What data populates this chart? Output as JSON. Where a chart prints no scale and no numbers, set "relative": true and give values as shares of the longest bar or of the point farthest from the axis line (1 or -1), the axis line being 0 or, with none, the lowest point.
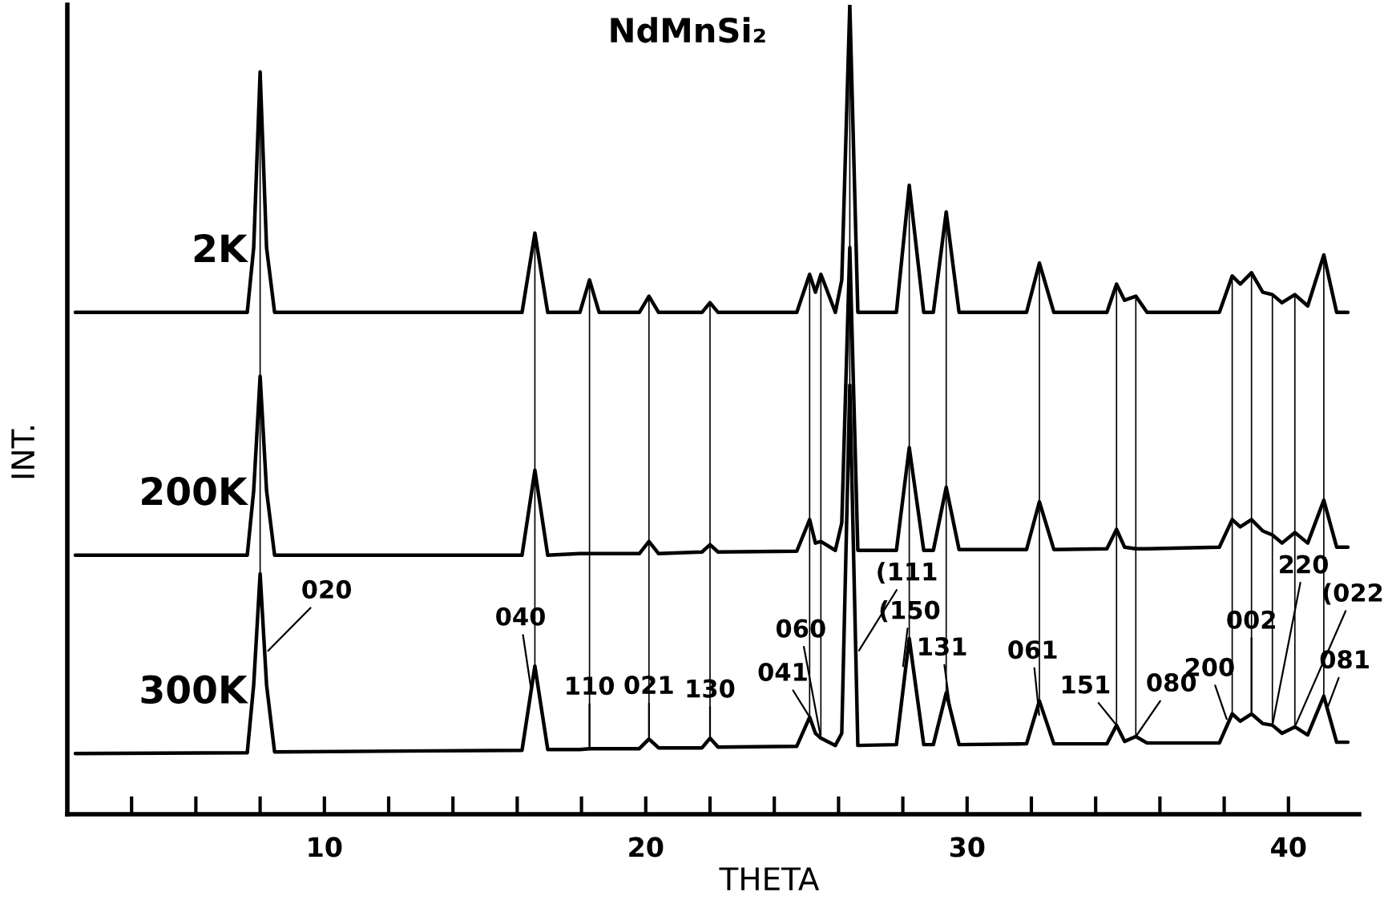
{
  "chart_data": {
    "type": "line",
    "title": "NdMnSi₂",
    "xlabel": "THETA",
    "ylabel": "INT.",
    "relative": true,
    "xlim": [
      2,
      42.2
    ],
    "xticks": [
      {
        "value": 4,
        "label": null
      },
      {
        "value": 6,
        "label": null
      },
      {
        "value": 8,
        "label": null
      },
      10,
      {
        "value": 12,
        "label": null
      },
      {
        "value": 14,
        "label": null
      },
      {
        "value": 16,
        "label": null
      },
      {
        "value": 18,
        "label": null
      },
      20,
      {
        "value": 22,
        "label": null
      },
      {
        "value": 24,
        "label": null
      },
      {
        "value": 26,
        "label": null
      },
      {
        "value": 28,
        "label": null
      },
      30,
      {
        "value": 32,
        "label": null
      },
      {
        "value": 34,
        "label": null
      },
      {
        "value": 36,
        "label": null
      },
      {
        "value": 38,
        "label": null
      },
      40
    ],
    "tick_labels": "x",
    "grid": false,
    "marker": "none",
    "line_style": "solid",
    "x": [
      2.25,
      7.6,
      7.8,
      8.0,
      8.2,
      8.45,
      16.15,
      16.55,
      16.95,
      17.95,
      18.25,
      18.55,
      19.8,
      20.1,
      20.4,
      21.75,
      22.0,
      22.25,
      24.7,
      25.1,
      25.28,
      25.45,
      25.9,
      26.1,
      26.35,
      26.6,
      27.8,
      28.2,
      28.65,
      28.95,
      29.35,
      29.75,
      31.85,
      32.25,
      32.7,
      34.35,
      34.65,
      34.9,
      35.25,
      35.6,
      37.85,
      38.25,
      38.5,
      38.85,
      39.2,
      39.5,
      39.8,
      40.2,
      40.6,
      41.1,
      41.5,
      41.85
    ],
    "series": [
      {
        "name": "2K",
        "color": "#000000",
        "values": [
          0.62,
          0.62,
          0.7,
          0.917,
          0.7,
          0.62,
          0.62,
          0.718,
          0.62,
          0.62,
          0.66,
          0.62,
          0.62,
          0.64,
          0.62,
          0.62,
          0.632,
          0.62,
          0.62,
          0.667,
          0.645,
          0.667,
          0.62,
          0.66,
          1.0,
          0.62,
          0.62,
          0.777,
          0.62,
          0.62,
          0.744,
          0.62,
          0.62,
          0.681,
          0.62,
          0.62,
          0.655,
          0.635,
          0.64,
          0.62,
          0.62,
          0.665,
          0.655,
          0.669,
          0.645,
          0.642,
          0.632,
          0.642,
          0.628,
          0.691,
          0.62,
          0.62
        ]
      },
      {
        "name": "200K",
        "color": "#000000",
        "values": [
          0.32,
          0.32,
          0.4,
          0.541,
          0.4,
          0.32,
          0.32,
          0.425,
          0.32,
          0.322,
          0.322,
          0.322,
          0.322,
          0.337,
          0.322,
          0.324,
          0.333,
          0.324,
          0.325,
          0.364,
          0.335,
          0.337,
          0.326,
          0.36,
          0.7,
          0.326,
          0.326,
          0.453,
          0.326,
          0.326,
          0.404,
          0.327,
          0.327,
          0.386,
          0.327,
          0.328,
          0.352,
          0.33,
          0.328,
          0.328,
          0.33,
          0.364,
          0.355,
          0.364,
          0.35,
          0.345,
          0.335,
          0.348,
          0.335,
          0.388,
          0.33,
          0.33
        ]
      },
      {
        "name": "300K",
        "color": "#000000",
        "values": [
          0.075,
          0.076,
          0.16,
          0.297,
          0.16,
          0.077,
          0.079,
          0.183,
          0.08,
          0.08,
          0.081,
          0.081,
          0.081,
          0.093,
          0.082,
          0.082,
          0.094,
          0.083,
          0.084,
          0.12,
          0.1,
          0.094,
          0.085,
          0.1,
          0.53,
          0.085,
          0.086,
          0.217,
          0.086,
          0.086,
          0.15,
          0.086,
          0.087,
          0.14,
          0.087,
          0.087,
          0.11,
          0.09,
          0.096,
          0.088,
          0.088,
          0.124,
          0.115,
          0.124,
          0.112,
          0.11,
          0.1,
          0.108,
          0.098,
          0.146,
          0.089,
          0.089
        ]
      }
    ],
    "ref_lines": [
      {
        "axis": "x",
        "value": 8.0
      },
      {
        "axis": "x",
        "value": 16.55
      },
      {
        "axis": "x",
        "value": 18.25
      },
      {
        "axis": "x",
        "value": 20.1
      },
      {
        "axis": "x",
        "value": 22.0
      },
      {
        "axis": "x",
        "value": 25.1
      },
      {
        "axis": "x",
        "value": 25.45
      },
      {
        "axis": "x",
        "value": 26.35
      },
      {
        "axis": "x",
        "value": 28.2
      },
      {
        "axis": "x",
        "value": 29.35
      },
      {
        "axis": "x",
        "value": 32.25
      },
      {
        "axis": "x",
        "value": 34.65
      },
      {
        "axis": "x",
        "value": 35.25
      },
      {
        "axis": "x",
        "value": 38.25
      },
      {
        "axis": "x",
        "value": 38.85
      },
      {
        "axis": "x",
        "value": 39.5
      },
      {
        "axis": "x",
        "value": 40.2
      },
      {
        "axis": "x",
        "value": 41.1
      }
    ],
    "annotations": [
      {
        "text": "020",
        "x": 8.2,
        "y": 0.2
      },
      {
        "text": "040",
        "x": 16.45,
        "y": 0.15
      },
      {
        "text": "110",
        "x": 18.25,
        "y": 0.081
      },
      {
        "text": "021",
        "x": 20.1,
        "y": 0.093
      },
      {
        "text": "130",
        "x": 22.0,
        "y": 0.094
      },
      {
        "text": "060",
        "x": 25.45,
        "y": 0.094
      },
      {
        "text": "041",
        "x": 25.1,
        "y": 0.12
      },
      {
        "text": "(111",
        "x": 26.6,
        "y": 0.2
      },
      {
        "text": "(150",
        "x": 28.0,
        "y": 0.18
      },
      {
        "text": "131",
        "x": 29.5,
        "y": 0.124
      },
      {
        "text": "061",
        "x": 32.25,
        "y": 0.12
      },
      {
        "text": "151",
        "x": 34.65,
        "y": 0.11
      },
      {
        "text": "080",
        "x": 35.25,
        "y": 0.096
      },
      {
        "text": "200",
        "x": 38.1,
        "y": 0.115
      },
      {
        "text": "002",
        "x": 38.85,
        "y": 0.124
      },
      {
        "text": "220",
        "x": 39.5,
        "y": 0.11
      },
      {
        "text": "(022",
        "x": 40.2,
        "y": 0.108
      },
      {
        "text": "081",
        "x": 41.2,
        "y": 0.13
      }
    ]
  }
}
